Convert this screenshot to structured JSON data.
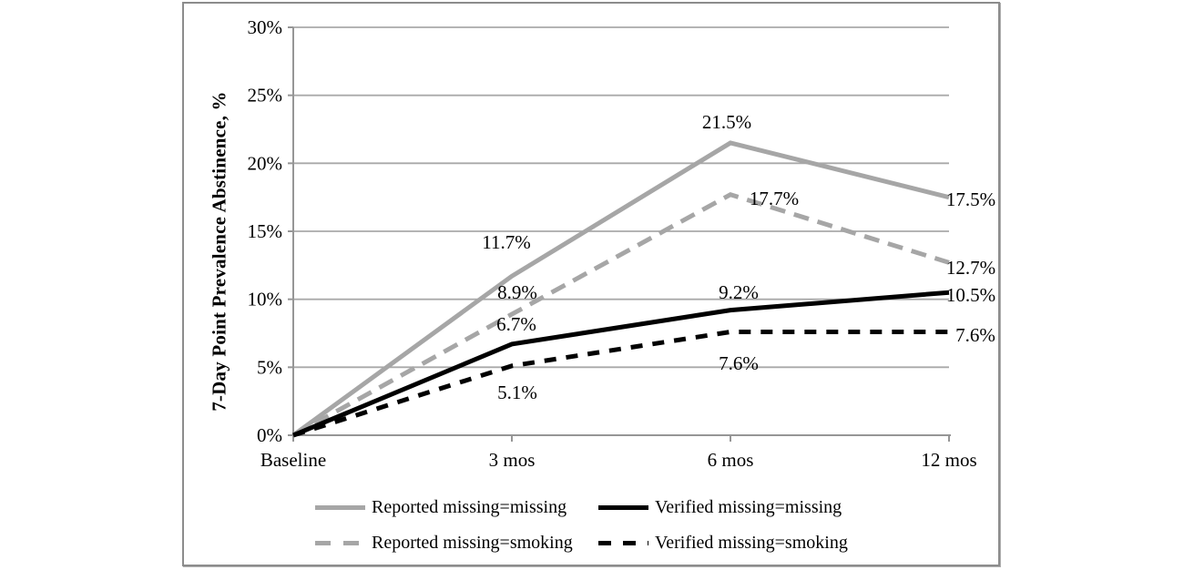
{
  "chart_data": {
    "type": "line",
    "title": "",
    "xlabel": "",
    "ylabel": "7-Day Point Prevalence Abstinence, %",
    "categories": [
      "Baseline",
      "3 mos",
      "6 mos",
      "12 mos"
    ],
    "ylim": [
      0,
      30
    ],
    "y_tick_step": 5,
    "y_tick_labels": [
      "0%",
      "5%",
      "10%",
      "15%",
      "20%",
      "25%",
      "30%"
    ],
    "grid": true,
    "legend_position": "bottom",
    "colors": {
      "gray_series": "#a6a6a6",
      "black_series": "#000000",
      "gridline": "#a9a9a9",
      "axis": "#969696",
      "text": "#000000"
    },
    "series": [
      {
        "name": "Reported missing=missing",
        "color": "#a6a6a6",
        "style": "solid",
        "values": [
          0,
          11.7,
          21.5,
          17.5
        ],
        "labels": [
          "",
          "11.7%",
          "21.5%",
          "17.5%"
        ]
      },
      {
        "name": "Verified missing=missing",
        "color": "#000000",
        "style": "solid",
        "values": [
          0,
          6.7,
          9.2,
          10.5
        ],
        "labels": [
          "",
          "6.7%",
          "9.2%",
          "10.5%"
        ]
      },
      {
        "name": "Reported missing=smoking",
        "color": "#a6a6a6",
        "style": "dashed",
        "values": [
          0,
          8.9,
          17.7,
          12.7
        ],
        "labels": [
          "",
          "8.9%",
          "17.7%",
          "12.7%"
        ]
      },
      {
        "name": "Verified missing=smoking",
        "color": "#000000",
        "style": "dashed",
        "values": [
          0,
          5.1,
          7.6,
          7.6
        ],
        "labels": [
          "",
          "5.1%",
          "7.6%",
          "7.6%"
        ]
      }
    ]
  }
}
